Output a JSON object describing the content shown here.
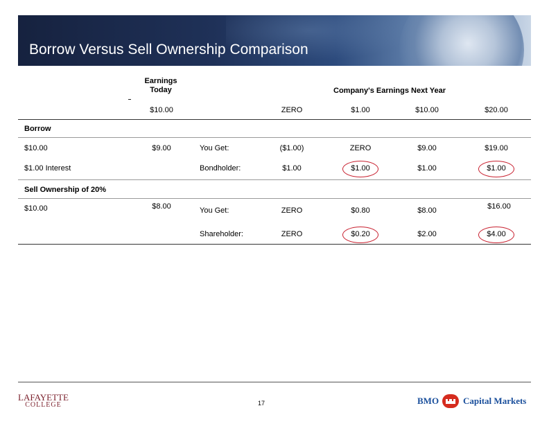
{
  "title": "Borrow Versus Sell Ownership Comparison",
  "header": {
    "earnings_today_line1": "Earnings",
    "earnings_today_line2": "Today",
    "next_year": "Company's Earnings Next Year",
    "today_value": "$10.00",
    "scenarios": [
      "ZERO",
      "$1.00",
      "$10.00",
      "$20.00"
    ]
  },
  "borrow": {
    "section_label": "Borrow",
    "amount": "$10.00",
    "interest": "$1.00 Interest",
    "today_value": "$9.00",
    "rows": [
      {
        "label": "You Get:",
        "values": [
          "($1.00)",
          "ZERO",
          "$9.00",
          "$19.00"
        ]
      },
      {
        "label": "Bondholder:",
        "values": [
          "$1.00",
          "$1.00",
          "$1.00",
          "$1.00"
        ]
      }
    ]
  },
  "sell": {
    "section_label": "Sell Ownership of 20%",
    "amount": "$10.00",
    "today_value": "$8.00",
    "rows": [
      {
        "label": "You Get:",
        "values": [
          "ZERO",
          "$0.80",
          "$8.00",
          "$16.00"
        ]
      },
      {
        "label": "Shareholder:",
        "values": [
          "ZERO",
          "$0.20",
          "$2.00",
          "$4.00"
        ]
      }
    ]
  },
  "footer": {
    "page_number": "17",
    "school_line1": "LAFAYETTE",
    "school_line2": "COLLEGE",
    "brand": "BMO",
    "brand_suffix": "Capital Markets"
  },
  "colors": {
    "banner_dark": "#16223f",
    "circle_red": "#c8202f",
    "brand_blue": "#1a4f9c",
    "brand_red": "#d52b1e"
  }
}
